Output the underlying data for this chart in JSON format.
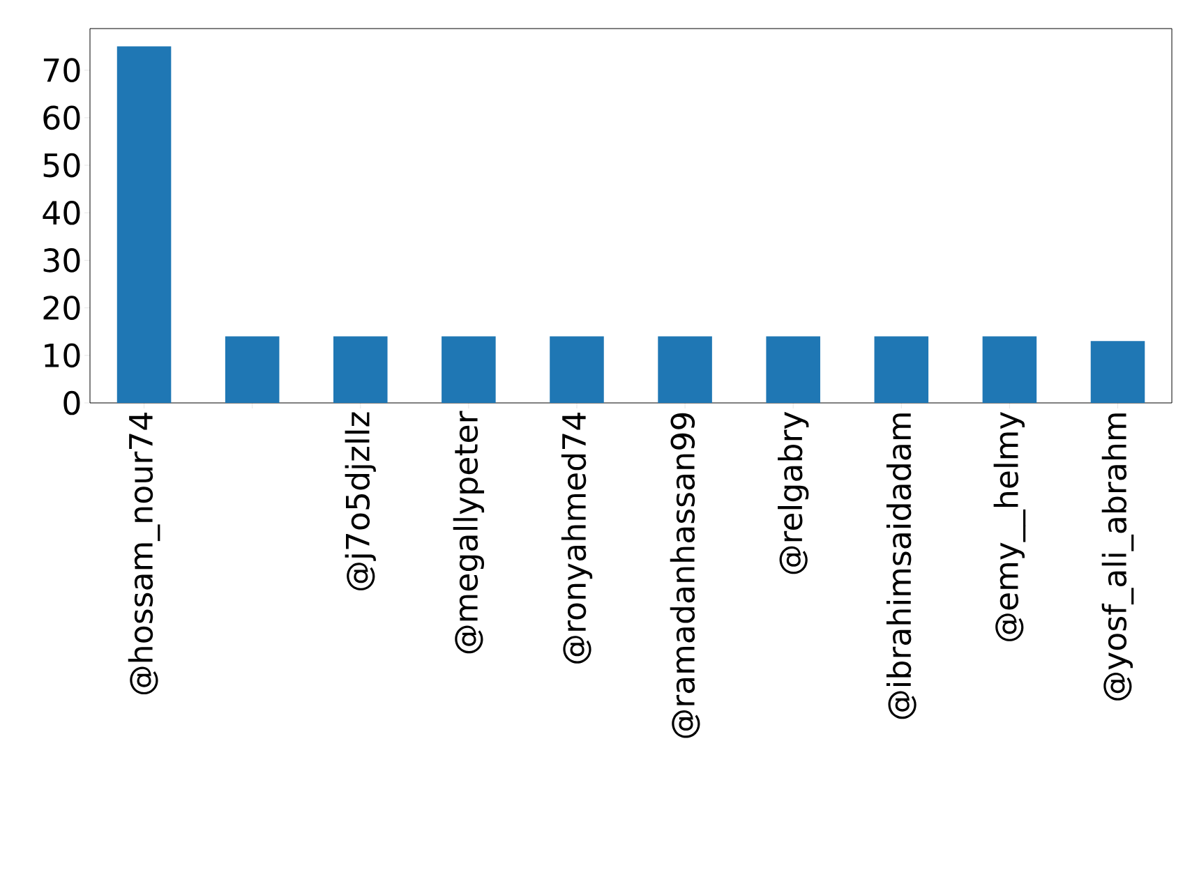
{
  "chart_data": {
    "type": "bar",
    "categories": [
      "@hossam_nour74",
      null,
      "@j7o5djzllz",
      "@megallypeter",
      "@ronyahmed74",
      "@ramadanhassan99",
      "@relgabry",
      "@ibrahimsaidadam",
      "@emy__helmy",
      "@yosf_ali_abrahm"
    ],
    "values": [
      75,
      14,
      14,
      14,
      14,
      14,
      14,
      14,
      14,
      13
    ],
    "color": "#1f77b4",
    "ylim": [
      0,
      78.75
    ],
    "yticks": [
      0,
      10,
      20,
      30,
      40,
      50,
      60,
      70
    ],
    "grid": false
  }
}
